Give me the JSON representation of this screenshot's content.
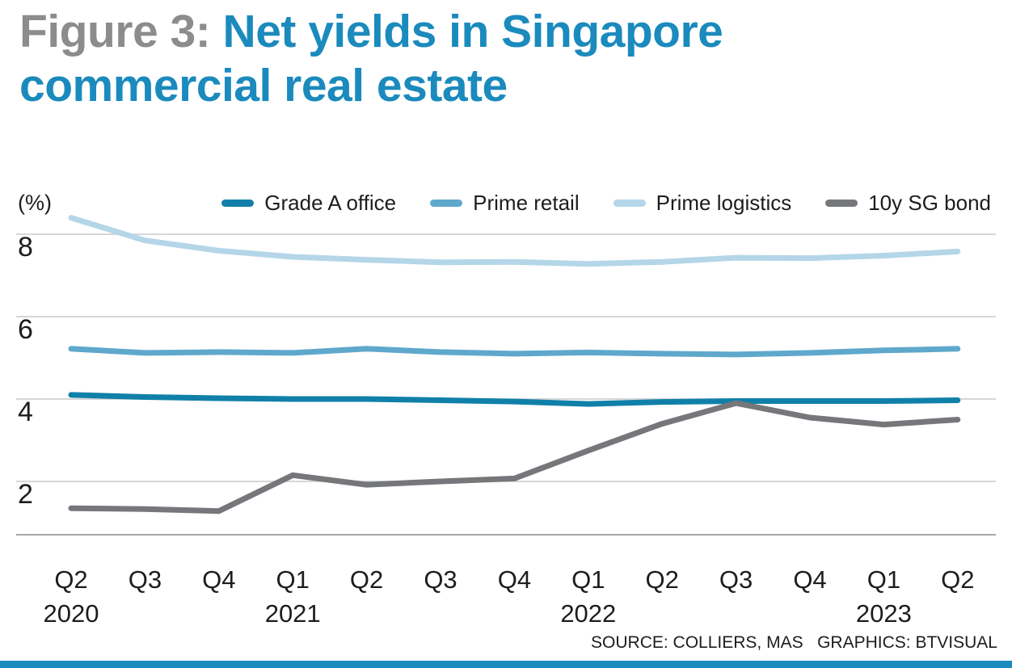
{
  "title": {
    "prefix": "Figure 3:",
    "main": " Net yields in Singapore commercial real estate"
  },
  "percent_label": "(%)",
  "source": "SOURCE: COLLIERS, MAS   GRAPHICS: BTVISUAL",
  "colors": {
    "accent_blue": "#1b8abd",
    "title_gray": "#8a8c8e",
    "grade_a_office": "#1180a8",
    "prime_retail": "#5fa8cc",
    "prime_logistics": "#b4d6e8",
    "sg_bond": "#76777a",
    "gridline": "#c9cacb",
    "axis_line": "#a7a8aa",
    "text": "#1d1d1f"
  },
  "chart_data": {
    "type": "line",
    "title": "Figure 3: Net yields in Singapore commercial real estate",
    "xlabel": "",
    "ylabel": "(%)",
    "ylim": [
      0.7,
      8.6
    ],
    "yticks": [
      2,
      4,
      6,
      8
    ],
    "grid": true,
    "legend_position": "top",
    "categories": [
      "Q2 2020",
      "Q3 2020",
      "Q4 2020",
      "Q1 2021",
      "Q2 2021",
      "Q3 2021",
      "Q4 2021",
      "Q1 2022",
      "Q2 2022",
      "Q3 2022",
      "Q4 2022",
      "Q1 2023",
      "Q2 2023"
    ],
    "x_tick_labels": [
      "Q2",
      "Q3",
      "Q4",
      "Q1",
      "Q2",
      "Q3",
      "Q4",
      "Q1",
      "Q2",
      "Q3",
      "Q4",
      "Q1",
      "Q2"
    ],
    "year_labels": [
      {
        "label": "2020",
        "index": 0
      },
      {
        "label": "2021",
        "index": 3
      },
      {
        "label": "2022",
        "index": 7
      },
      {
        "label": "2023",
        "index": 11
      }
    ],
    "series": [
      {
        "name": "Grade A office",
        "color": "#1180a8",
        "values": [
          4.1,
          4.05,
          4.02,
          4.0,
          4.0,
          3.97,
          3.94,
          3.88,
          3.93,
          3.95,
          3.95,
          3.95,
          3.97
        ]
      },
      {
        "name": "Prime retail",
        "color": "#5fa8cc",
        "values": [
          5.22,
          5.12,
          5.14,
          5.12,
          5.22,
          5.14,
          5.1,
          5.13,
          5.1,
          5.08,
          5.12,
          5.18,
          5.22
        ]
      },
      {
        "name": "Prime logistics",
        "color": "#b4d6e8",
        "values": [
          8.4,
          7.85,
          7.6,
          7.45,
          7.38,
          7.32,
          7.33,
          7.28,
          7.33,
          7.43,
          7.42,
          7.48,
          7.58
        ]
      },
      {
        "name": "10y SG bond",
        "color": "#76777a",
        "values": [
          1.35,
          1.33,
          1.28,
          2.15,
          1.92,
          2.0,
          2.07,
          2.75,
          3.4,
          3.9,
          3.55,
          3.38,
          3.5
        ]
      }
    ]
  }
}
